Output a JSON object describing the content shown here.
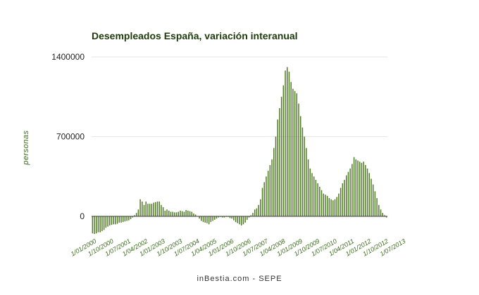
{
  "chart_data": {
    "type": "bar",
    "title": "Desempleados España, variación interanual",
    "ylabel": "personas",
    "xlabel": "",
    "footer": "inBestia.com - SEPE",
    "ylim": [
      -200000,
      1400000
    ],
    "yticks": [
      {
        "value": 0,
        "label": "0"
      },
      {
        "value": 700000,
        "label": "700000"
      },
      {
        "value": 1400000,
        "label": "1400000"
      }
    ],
    "grid": true,
    "legend": "none",
    "bar_color": "#4f7a24",
    "x_start": "2000-01",
    "x_tick_labels": [
      {
        "index": 0,
        "label": "1/01/2000"
      },
      {
        "index": 9,
        "label": "1/10/2000"
      },
      {
        "index": 18,
        "label": "1/07/2001"
      },
      {
        "index": 27,
        "label": "1/04/2002"
      },
      {
        "index": 36,
        "label": "1/01/2003"
      },
      {
        "index": 45,
        "label": "1/10/2003"
      },
      {
        "index": 54,
        "label": "1/07/2004"
      },
      {
        "index": 63,
        "label": "1/04/2005"
      },
      {
        "index": 72,
        "label": "1/01/2006"
      },
      {
        "index": 81,
        "label": "1/10/2006"
      },
      {
        "index": 90,
        "label": "1/07/2007"
      },
      {
        "index": 99,
        "label": "1/04/2008"
      },
      {
        "index": 108,
        "label": "1/01/2009"
      },
      {
        "index": 117,
        "label": "1/10/2009"
      },
      {
        "index": 126,
        "label": "1/07/2010"
      },
      {
        "index": 135,
        "label": "1/04/2011"
      },
      {
        "index": 144,
        "label": "1/01/2012"
      },
      {
        "index": 153,
        "label": "1/10/2012"
      },
      {
        "index": 162,
        "label": "1/07/2013"
      }
    ],
    "values": [
      -150000,
      -155000,
      -150000,
      -140000,
      -140000,
      -130000,
      -120000,
      -100000,
      -90000,
      -80000,
      -75000,
      -70000,
      -70000,
      -65000,
      -55000,
      -55000,
      -50000,
      -45000,
      -40000,
      -35000,
      -25000,
      -10000,
      10000,
      30000,
      60000,
      150000,
      130000,
      100000,
      130000,
      110000,
      110000,
      110000,
      120000,
      125000,
      130000,
      130000,
      100000,
      80000,
      50000,
      60000,
      50000,
      40000,
      40000,
      35000,
      35000,
      40000,
      50000,
      45000,
      40000,
      55000,
      50000,
      45000,
      40000,
      25000,
      15000,
      0,
      -20000,
      -40000,
      -50000,
      -55000,
      -60000,
      -70000,
      -50000,
      -40000,
      -30000,
      -20000,
      -10000,
      -5000,
      -10000,
      -10000,
      -5000,
      -5000,
      -15000,
      -20000,
      -35000,
      -50000,
      -60000,
      -70000,
      -80000,
      -70000,
      -55000,
      -30000,
      -10000,
      10000,
      30000,
      60000,
      70000,
      100000,
      150000,
      250000,
      300000,
      350000,
      400000,
      450000,
      500000,
      600000,
      700000,
      850000,
      950000,
      1050000,
      1150000,
      1280000,
      1310000,
      1270000,
      1180000,
      1120000,
      1100000,
      1080000,
      990000,
      880000,
      780000,
      700000,
      600000,
      500000,
      420000,
      380000,
      350000,
      320000,
      290000,
      260000,
      230000,
      200000,
      190000,
      180000,
      160000,
      150000,
      140000,
      150000,
      170000,
      200000,
      250000,
      290000,
      320000,
      360000,
      390000,
      420000,
      460000,
      520000,
      500000,
      490000,
      480000,
      470000,
      480000,
      450000,
      420000,
      380000,
      330000,
      280000,
      220000,
      160000,
      100000,
      60000,
      30000,
      10000,
      -10000
    ]
  }
}
